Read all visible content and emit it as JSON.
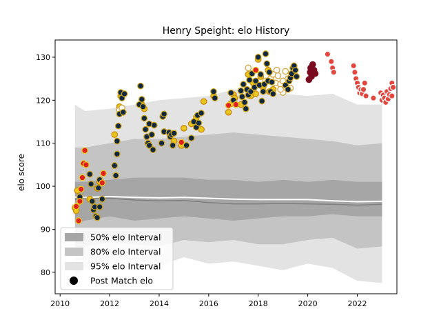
{
  "chart_data": {
    "type": "scatter",
    "title": "Henry Speight: elo History",
    "xlabel": "",
    "ylabel": "elo score",
    "xlim": [
      2009.8,
      2023.6
    ],
    "ylim": [
      75,
      134
    ],
    "x_ticks": [
      2010,
      2012,
      2014,
      2016,
      2018,
      2020,
      2022
    ],
    "y_ticks": [
      80,
      90,
      100,
      110,
      120,
      130
    ],
    "legend_position": "lower-left",
    "legend": [
      {
        "label": "50% elo Interval",
        "kind": "band",
        "color": "#a6a6a6"
      },
      {
        "label": "80% elo Interval",
        "kind": "band",
        "color": "#c4c4c4"
      },
      {
        "label": "95% elo Interval",
        "kind": "band",
        "color": "#e3e3e3"
      },
      {
        "label": "Post Match elo",
        "kind": "marker",
        "color": "#000000"
      }
    ],
    "bands": {
      "x": [
        2010.6,
        2011.0,
        2012.0,
        2013.0,
        2014.0,
        2015.0,
        2016.0,
        2017.0,
        2018.0,
        2019.0,
        2020.0,
        2021.0,
        2022.0,
        2023.0
      ],
      "p95_low": [
        79.0,
        81.0,
        82.5,
        83.0,
        81.5,
        83.5,
        82.0,
        82.5,
        81.5,
        80.5,
        82.0,
        81.0,
        78.0,
        77.5
      ],
      "p95_high": [
        119.0,
        117.5,
        118.0,
        119.0,
        120.0,
        120.5,
        121.0,
        122.5,
        122.0,
        121.5,
        121.0,
        121.5,
        119.0,
        119.0
      ],
      "p80_low": [
        84.5,
        86.0,
        87.0,
        86.5,
        86.0,
        87.5,
        87.0,
        87.5,
        86.5,
        86.5,
        87.5,
        88.0,
        85.5,
        86.0
      ],
      "p80_high": [
        109.0,
        109.0,
        110.0,
        111.0,
        111.0,
        111.5,
        112.0,
        112.5,
        112.0,
        111.5,
        111.0,
        110.5,
        109.5,
        110.0
      ],
      "p50_low": [
        91.5,
        92.0,
        93.0,
        92.0,
        92.5,
        93.0,
        92.5,
        92.0,
        92.5,
        93.0,
        93.0,
        93.5,
        93.0,
        93.0
      ],
      "p50_high": [
        101.0,
        101.0,
        101.5,
        102.0,
        102.0,
        102.0,
        101.5,
        101.5,
        101.0,
        101.5,
        101.0,
        101.5,
        101.0,
        101.0
      ],
      "mean": [
        97.5,
        97.4,
        97.6,
        97.4,
        97.3,
        97.4,
        97.2,
        97.0,
        96.9,
        96.9,
        96.9,
        96.6,
        96.4,
        96.5
      ],
      "median": [
        97.0,
        97.1,
        97.2,
        96.8,
        96.6,
        96.7,
        96.2,
        95.9,
        95.9,
        96.0,
        95.9,
        95.8,
        95.6,
        95.8
      ]
    },
    "series": [
      {
        "face": "#e9c61b",
        "edge": "#c98a12",
        "points": [
          [
            2010.6,
            95.0
          ],
          [
            2010.65,
            94.3
          ],
          [
            2010.7,
            99.0
          ],
          [
            2011.2,
            97.0
          ],
          [
            2011.5,
            99.5
          ],
          [
            2011.6,
            101.0
          ],
          [
            2012.2,
            112.0
          ],
          [
            2012.4,
            118.5
          ],
          [
            2012.45,
            121.0
          ],
          [
            2013.3,
            119.0
          ],
          [
            2013.4,
            118.0
          ],
          [
            2014.6,
            110.5
          ],
          [
            2014.9,
            109.5
          ],
          [
            2015.0,
            113.5
          ],
          [
            2015.3,
            114.5
          ],
          [
            2015.5,
            116.0
          ],
          [
            2015.7,
            113.2
          ],
          [
            2015.8,
            119.7
          ],
          [
            2016.2,
            121.0
          ],
          [
            2016.8,
            117.2
          ],
          [
            2016.9,
            119.2
          ],
          [
            2017.0,
            121.3
          ],
          [
            2017.05,
            120.5
          ],
          [
            2017.3,
            119.0
          ],
          [
            2017.5,
            118.0
          ],
          [
            2017.6,
            126.0
          ],
          [
            2017.7,
            121.0
          ],
          [
            2017.8,
            124.0
          ],
          [
            2017.9,
            121.5
          ],
          [
            2018.0,
            129.5
          ],
          [
            2018.1,
            125.5
          ],
          [
            2018.2,
            123.0
          ],
          [
            2018.4,
            127.0
          ],
          [
            2018.45,
            122.0
          ],
          [
            2018.6,
            122.5
          ]
        ]
      },
      {
        "face": "#ffffff",
        "edge": "#d2a642",
        "points": [
          [
            2012.4,
            117.7
          ],
          [
            2012.5,
            118.2
          ],
          [
            2018.3,
            124.5
          ],
          [
            2018.5,
            125.0
          ],
          [
            2018.6,
            126.0
          ],
          [
            2018.7,
            124.0
          ],
          [
            2018.75,
            127.0
          ],
          [
            2018.8,
            125.7
          ],
          [
            2018.9,
            123.7
          ],
          [
            2019.0,
            124.5
          ],
          [
            2019.1,
            126.7
          ],
          [
            2019.2,
            125.0
          ],
          [
            2019.3,
            122.8
          ],
          [
            2019.0,
            121.8
          ],
          [
            2018.9,
            122.5
          ],
          [
            2017.6,
            127.5
          ]
        ]
      },
      {
        "face": "#0f2742",
        "edge": "#c9a21b",
        "points": [
          [
            2010.8,
            97.5
          ],
          [
            2011.2,
            102.8
          ],
          [
            2011.25,
            100.5
          ],
          [
            2011.3,
            96.5
          ],
          [
            2011.35,
            94.5
          ],
          [
            2011.4,
            95.2
          ],
          [
            2011.45,
            93.0
          ],
          [
            2011.5,
            92.7
          ],
          [
            2011.55,
            99.6
          ],
          [
            2011.6,
            95.2
          ],
          [
            2011.6,
            101.5
          ],
          [
            2011.7,
            97.0
          ],
          [
            2012.2,
            104.8
          ],
          [
            2012.25,
            102.5
          ],
          [
            2012.3,
            107.5
          ],
          [
            2012.3,
            110.5
          ],
          [
            2012.35,
            114.0
          ],
          [
            2012.4,
            116.8
          ],
          [
            2012.45,
            121.8
          ],
          [
            2012.5,
            120.5
          ],
          [
            2012.55,
            117.2
          ],
          [
            2012.6,
            121.5
          ],
          [
            2013.2,
            119.0
          ],
          [
            2013.25,
            123.3
          ],
          [
            2013.3,
            120.2
          ],
          [
            2013.35,
            118.5
          ],
          [
            2013.4,
            115.8
          ],
          [
            2013.45,
            113.2
          ],
          [
            2013.5,
            111.5
          ],
          [
            2013.55,
            110.0
          ],
          [
            2013.6,
            114.5
          ],
          [
            2013.6,
            109.5
          ],
          [
            2013.7,
            112.0
          ],
          [
            2013.75,
            108.5
          ],
          [
            2013.8,
            114.2
          ],
          [
            2014.1,
            110.0
          ],
          [
            2014.15,
            116.2
          ],
          [
            2014.2,
            116.8
          ],
          [
            2014.2,
            112.7
          ],
          [
            2014.4,
            112.5
          ],
          [
            2014.45,
            111.5
          ],
          [
            2014.5,
            112.0
          ],
          [
            2014.55,
            109.5
          ],
          [
            2014.6,
            112.3
          ],
          [
            2015.1,
            109.5
          ],
          [
            2015.3,
            111.2
          ],
          [
            2015.4,
            115.0
          ],
          [
            2015.5,
            113.7
          ],
          [
            2015.55,
            116.5
          ],
          [
            2015.6,
            114.7
          ],
          [
            2015.7,
            117.0
          ],
          [
            2016.2,
            122.0
          ],
          [
            2016.25,
            120.5
          ],
          [
            2016.9,
            121.7
          ],
          [
            2017.0,
            120.0
          ],
          [
            2017.3,
            122.2
          ],
          [
            2017.35,
            120.8
          ],
          [
            2017.4,
            123.7
          ],
          [
            2017.45,
            119.5
          ],
          [
            2017.5,
            118.0
          ],
          [
            2017.55,
            122.5
          ],
          [
            2017.6,
            121.2
          ],
          [
            2017.65,
            124.7
          ],
          [
            2017.7,
            122.0
          ],
          [
            2017.75,
            126.2
          ],
          [
            2017.85,
            123.0
          ],
          [
            2017.9,
            124.5
          ],
          [
            2018.0,
            130.0
          ],
          [
            2018.05,
            123.5
          ],
          [
            2018.1,
            126.0
          ],
          [
            2018.15,
            119.8
          ],
          [
            2018.2,
            122.0
          ],
          [
            2018.25,
            123.7
          ],
          [
            2018.3,
            130.8
          ],
          [
            2018.35,
            128.5
          ],
          [
            2018.4,
            124.5
          ],
          [
            2018.45,
            126.5
          ],
          [
            2018.5,
            122.0
          ],
          [
            2018.55,
            124.2
          ],
          [
            2018.6,
            121.5
          ],
          [
            2019.1,
            123.5
          ],
          [
            2019.2,
            122.5
          ],
          [
            2019.25,
            124.5
          ],
          [
            2019.3,
            125.2
          ],
          [
            2019.35,
            126.2
          ],
          [
            2019.4,
            127.5
          ],
          [
            2019.45,
            128.0
          ],
          [
            2019.5,
            127.0
          ],
          [
            2019.55,
            125.5
          ]
        ]
      },
      {
        "face": "#e01f1f",
        "edge": "#e9c61b",
        "points": [
          [
            2010.65,
            95.3
          ],
          [
            2010.75,
            92.0
          ],
          [
            2010.8,
            96.5
          ],
          [
            2010.85,
            99.3
          ],
          [
            2010.9,
            102.0
          ],
          [
            2010.95,
            105.3
          ],
          [
            2011.0,
            108.3
          ],
          [
            2011.05,
            105.0
          ],
          [
            2011.7,
            100.8
          ],
          [
            2011.75,
            103.0
          ],
          [
            2014.9,
            110.2
          ],
          [
            2016.8,
            118.8
          ],
          [
            2017.1,
            119.0
          ],
          [
            2017.9,
            127.0
          ]
        ]
      },
      {
        "face": "#7a0a1f",
        "edge": "#7a0a1f",
        "points": [
          [
            2020.05,
            124.8
          ],
          [
            2020.1,
            126.5
          ],
          [
            2020.12,
            127.5
          ],
          [
            2020.15,
            125.5
          ],
          [
            2020.2,
            128.3
          ],
          [
            2020.25,
            127.0
          ],
          [
            2020.3,
            126.2
          ]
        ]
      },
      {
        "face": "#e2483f",
        "edge": "#ffffff",
        "points": [
          [
            2020.8,
            130.7
          ],
          [
            2020.95,
            129.0
          ],
          [
            2021.0,
            127.5
          ],
          [
            2021.05,
            126.5
          ],
          [
            2021.85,
            128.0
          ],
          [
            2021.9,
            126.5
          ],
          [
            2021.95,
            125.0
          ],
          [
            2022.0,
            124.0
          ],
          [
            2022.05,
            123.0
          ],
          [
            2022.1,
            121.7
          ],
          [
            2022.15,
            122.5
          ],
          [
            2022.2,
            121.5
          ],
          [
            2022.25,
            122.5
          ],
          [
            2022.3,
            124.0
          ],
          [
            2022.35,
            121.0
          ],
          [
            2022.65,
            120.5
          ],
          [
            2022.95,
            121.7
          ],
          [
            2023.0,
            120.0
          ],
          [
            2023.05,
            121.2
          ],
          [
            2023.1,
            120.5
          ],
          [
            2023.15,
            119.5
          ],
          [
            2023.2,
            122.0
          ],
          [
            2023.25,
            120.3
          ],
          [
            2023.3,
            121.3
          ],
          [
            2023.35,
            122.7
          ],
          [
            2023.4,
            124.0
          ],
          [
            2023.4,
            121.0
          ],
          [
            2023.45,
            123.0
          ]
        ]
      }
    ]
  }
}
